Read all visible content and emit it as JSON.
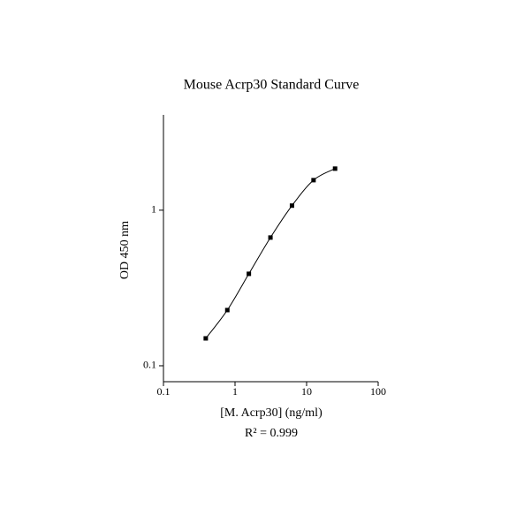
{
  "chart_data": {
    "type": "scatter",
    "title": "Mouse Acrp30 Standard Curve",
    "xlabel": "[M. Acrp30] (ng/ml)",
    "ylabel": "OD 450 nm",
    "annotation": "R² = 0.999",
    "x": [
      0.39,
      0.78,
      1.56,
      3.125,
      6.25,
      12.5,
      25
    ],
    "series": [
      {
        "color": "#000000",
        "values": [
          0.15,
          0.228,
          0.39,
          0.667,
          1.07,
          1.56,
          1.85
        ]
      }
    ],
    "xscale": "log",
    "yscale": "log",
    "curve": true,
    "xlim": [
      0.1,
      100
    ],
    "ylim": [
      0.079,
      4.1
    ],
    "xticks": [
      0.1,
      1,
      10,
      100
    ],
    "yticks": [
      0.1,
      1
    ]
  }
}
